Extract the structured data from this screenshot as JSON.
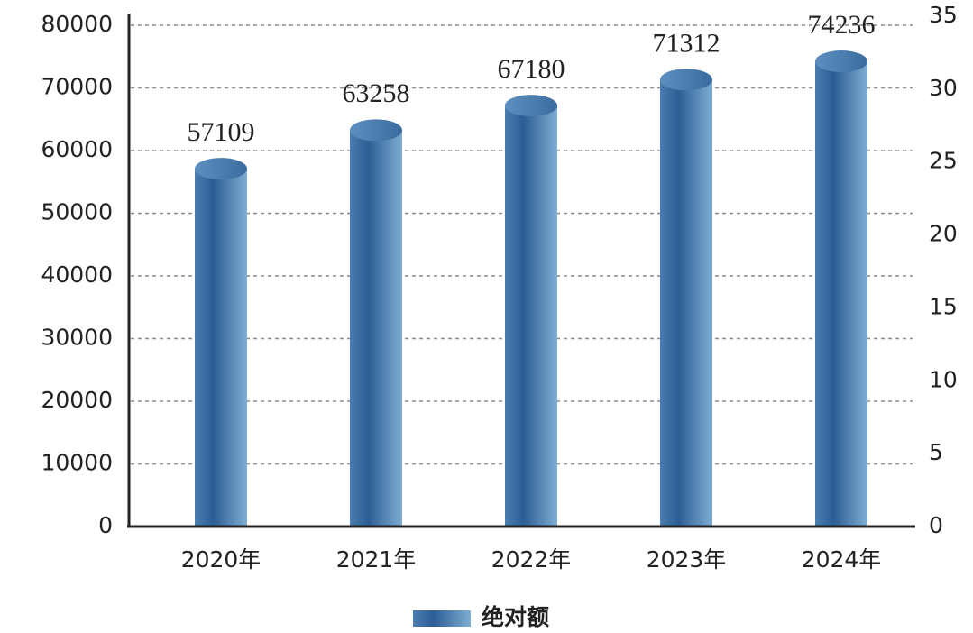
{
  "chart_data": {
    "type": "bar",
    "categories": [
      "2020年",
      "2021年",
      "2022年",
      "2023年",
      "2024年"
    ],
    "series": [
      {
        "name": "绝对额",
        "color": "#3a6fa0",
        "values": [
          57109,
          63258,
          67180,
          71312,
          74236
        ]
      }
    ],
    "ylim": [
      0,
      80000
    ],
    "yticks": [
      0,
      10000,
      20000,
      30000,
      40000,
      50000,
      60000,
      70000,
      80000
    ],
    "y2lim": [
      0,
      35
    ],
    "y2ticks": [
      0,
      5,
      10,
      15,
      20,
      25,
      30,
      35
    ],
    "grid": true,
    "legend": "bottom"
  }
}
